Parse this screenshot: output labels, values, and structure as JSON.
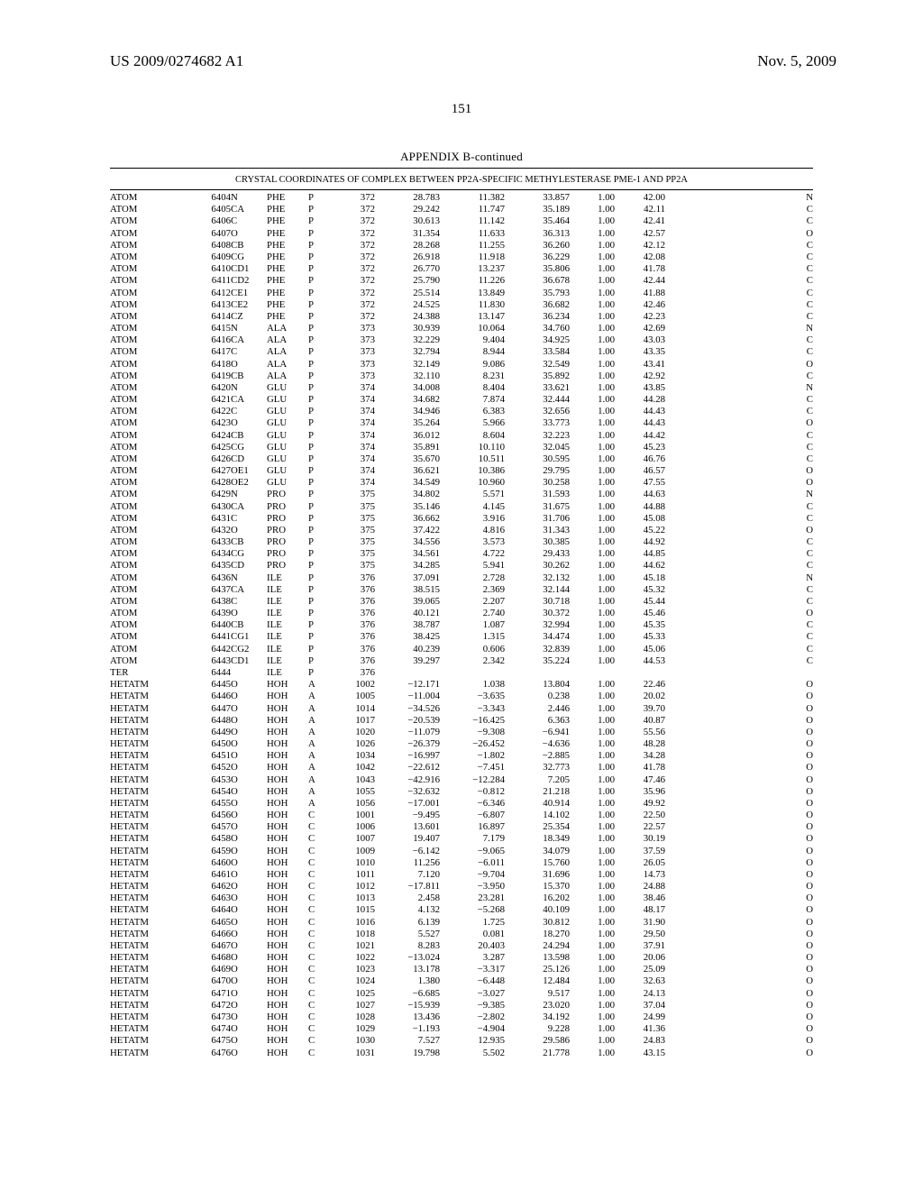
{
  "header": {
    "patent_number": "US 2009/0274682 A1",
    "date": "Nov. 5, 2009"
  },
  "page_number": "151",
  "table": {
    "caption": "APPENDIX B-continued",
    "subtitle": "CRYSTAL COORDINATES OF COMPLEX BETWEEN PP2A-SPECIFIC METHYLESTERASE PME-1 AND PP2A",
    "rows": [
      [
        "ATOM",
        "6404",
        "N",
        "PHE",
        "P",
        "372",
        "28.783",
        "11.382",
        "33.857",
        "1.00",
        "42.00",
        "N"
      ],
      [
        "ATOM",
        "6405",
        "CA",
        "PHE",
        "P",
        "372",
        "29.242",
        "11.747",
        "35.189",
        "1.00",
        "42.11",
        "C"
      ],
      [
        "ATOM",
        "6406",
        "C",
        "PHE",
        "P",
        "372",
        "30.613",
        "11.142",
        "35.464",
        "1.00",
        "42.41",
        "C"
      ],
      [
        "ATOM",
        "6407",
        "O",
        "PHE",
        "P",
        "372",
        "31.354",
        "11.633",
        "36.313",
        "1.00",
        "42.57",
        "O"
      ],
      [
        "ATOM",
        "6408",
        "CB",
        "PHE",
        "P",
        "372",
        "28.268",
        "11.255",
        "36.260",
        "1.00",
        "42.12",
        "C"
      ],
      [
        "ATOM",
        "6409",
        "CG",
        "PHE",
        "P",
        "372",
        "26.918",
        "11.918",
        "36.229",
        "1.00",
        "42.08",
        "C"
      ],
      [
        "ATOM",
        "6410",
        "CD1",
        "PHE",
        "P",
        "372",
        "26.770",
        "13.237",
        "35.806",
        "1.00",
        "41.78",
        "C"
      ],
      [
        "ATOM",
        "6411",
        "CD2",
        "PHE",
        "P",
        "372",
        "25.790",
        "11.226",
        "36.678",
        "1.00",
        "42.44",
        "C"
      ],
      [
        "ATOM",
        "6412",
        "CE1",
        "PHE",
        "P",
        "372",
        "25.514",
        "13.849",
        "35.793",
        "1.00",
        "41.88",
        "C"
      ],
      [
        "ATOM",
        "6413",
        "CE2",
        "PHE",
        "P",
        "372",
        "24.525",
        "11.830",
        "36.682",
        "1.00",
        "42.46",
        "C"
      ],
      [
        "ATOM",
        "6414",
        "CZ",
        "PHE",
        "P",
        "372",
        "24.388",
        "13.147",
        "36.234",
        "1.00",
        "42.23",
        "C"
      ],
      [
        "ATOM",
        "6415",
        "N",
        "ALA",
        "P",
        "373",
        "30.939",
        "10.064",
        "34.760",
        "1.00",
        "42.69",
        "N"
      ],
      [
        "ATOM",
        "6416",
        "CA",
        "ALA",
        "P",
        "373",
        "32.229",
        "9.404",
        "34.925",
        "1.00",
        "43.03",
        "C"
      ],
      [
        "ATOM",
        "6417",
        "C",
        "ALA",
        "P",
        "373",
        "32.794",
        "8.944",
        "33.584",
        "1.00",
        "43.35",
        "C"
      ],
      [
        "ATOM",
        "6418",
        "O",
        "ALA",
        "P",
        "373",
        "32.149",
        "9.086",
        "32.549",
        "1.00",
        "43.41",
        "O"
      ],
      [
        "ATOM",
        "6419",
        "CB",
        "ALA",
        "P",
        "373",
        "32.110",
        "8.231",
        "35.892",
        "1.00",
        "42.92",
        "C"
      ],
      [
        "ATOM",
        "6420",
        "N",
        "GLU",
        "P",
        "374",
        "34.008",
        "8.404",
        "33.621",
        "1.00",
        "43.85",
        "N"
      ],
      [
        "ATOM",
        "6421",
        "CA",
        "GLU",
        "P",
        "374",
        "34.682",
        "7.874",
        "32.444",
        "1.00",
        "44.28",
        "C"
      ],
      [
        "ATOM",
        "6422",
        "C",
        "GLU",
        "P",
        "374",
        "34.946",
        "6.383",
        "32.656",
        "1.00",
        "44.43",
        "C"
      ],
      [
        "ATOM",
        "6423",
        "O",
        "GLU",
        "P",
        "374",
        "35.264",
        "5.966",
        "33.773",
        "1.00",
        "44.43",
        "O"
      ],
      [
        "ATOM",
        "6424",
        "CB",
        "GLU",
        "P",
        "374",
        "36.012",
        "8.604",
        "32.223",
        "1.00",
        "44.42",
        "C"
      ],
      [
        "ATOM",
        "6425",
        "CG",
        "GLU",
        "P",
        "374",
        "35.891",
        "10.110",
        "32.045",
        "1.00",
        "45.23",
        "C"
      ],
      [
        "ATOM",
        "6426",
        "CD",
        "GLU",
        "P",
        "374",
        "35.670",
        "10.511",
        "30.595",
        "1.00",
        "46.76",
        "C"
      ],
      [
        "ATOM",
        "6427",
        "OE1",
        "GLU",
        "P",
        "374",
        "36.621",
        "10.386",
        "29.795",
        "1.00",
        "46.57",
        "O"
      ],
      [
        "ATOM",
        "6428",
        "OE2",
        "GLU",
        "P",
        "374",
        "34.549",
        "10.960",
        "30.258",
        "1.00",
        "47.55",
        "O"
      ],
      [
        "ATOM",
        "6429",
        "N",
        "PRO",
        "P",
        "375",
        "34.802",
        "5.571",
        "31.593",
        "1.00",
        "44.63",
        "N"
      ],
      [
        "ATOM",
        "6430",
        "CA",
        "PRO",
        "P",
        "375",
        "35.146",
        "4.145",
        "31.675",
        "1.00",
        "44.88",
        "C"
      ],
      [
        "ATOM",
        "6431",
        "C",
        "PRO",
        "P",
        "375",
        "36.662",
        "3.916",
        "31.706",
        "1.00",
        "45.08",
        "C"
      ],
      [
        "ATOM",
        "6432",
        "O",
        "PRO",
        "P",
        "375",
        "37.422",
        "4.816",
        "31.343",
        "1.00",
        "45.22",
        "O"
      ],
      [
        "ATOM",
        "6433",
        "CB",
        "PRO",
        "P",
        "375",
        "34.556",
        "3.573",
        "30.385",
        "1.00",
        "44.92",
        "C"
      ],
      [
        "ATOM",
        "6434",
        "CG",
        "PRO",
        "P",
        "375",
        "34.561",
        "4.722",
        "29.433",
        "1.00",
        "44.85",
        "C"
      ],
      [
        "ATOM",
        "6435",
        "CD",
        "PRO",
        "P",
        "375",
        "34.285",
        "5.941",
        "30.262",
        "1.00",
        "44.62",
        "C"
      ],
      [
        "ATOM",
        "6436",
        "N",
        "ILE",
        "P",
        "376",
        "37.091",
        "2.728",
        "32.132",
        "1.00",
        "45.18",
        "N"
      ],
      [
        "ATOM",
        "6437",
        "CA",
        "ILE",
        "P",
        "376",
        "38.515",
        "2.369",
        "32.144",
        "1.00",
        "45.32",
        "C"
      ],
      [
        "ATOM",
        "6438",
        "C",
        "ILE",
        "P",
        "376",
        "39.065",
        "2.207",
        "30.718",
        "1.00",
        "45.44",
        "C"
      ],
      [
        "ATOM",
        "6439",
        "O",
        "ILE",
        "P",
        "376",
        "40.121",
        "2.740",
        "30.372",
        "1.00",
        "45.46",
        "O"
      ],
      [
        "ATOM",
        "6440",
        "CB",
        "ILE",
        "P",
        "376",
        "38.787",
        "1.087",
        "32.994",
        "1.00",
        "45.35",
        "C"
      ],
      [
        "ATOM",
        "6441",
        "CG1",
        "ILE",
        "P",
        "376",
        "38.425",
        "1.315",
        "34.474",
        "1.00",
        "45.33",
        "C"
      ],
      [
        "ATOM",
        "6442",
        "CG2",
        "ILE",
        "P",
        "376",
        "40.239",
        "0.606",
        "32.839",
        "1.00",
        "45.06",
        "C"
      ],
      [
        "ATOM",
        "6443",
        "CD1",
        "ILE",
        "P",
        "376",
        "39.297",
        "2.342",
        "35.224",
        "1.00",
        "44.53",
        "C"
      ],
      [
        "TER",
        "6444",
        "",
        "ILE",
        "P",
        "376",
        "",
        "",
        "",
        "",
        "",
        ""
      ],
      [
        "HETATM",
        "6445",
        "O",
        "HOH",
        "A",
        "1002",
        "−12.171",
        "1.038",
        "13.804",
        "1.00",
        "22.46",
        "O"
      ],
      [
        "HETATM",
        "6446",
        "O",
        "HOH",
        "A",
        "1005",
        "−11.004",
        "−3.635",
        "0.238",
        "1.00",
        "20.02",
        "O"
      ],
      [
        "HETATM",
        "6447",
        "O",
        "HOH",
        "A",
        "1014",
        "−34.526",
        "−3.343",
        "2.446",
        "1.00",
        "39.70",
        "O"
      ],
      [
        "HETATM",
        "6448",
        "O",
        "HOH",
        "A",
        "1017",
        "−20.539",
        "−16.425",
        "6.363",
        "1.00",
        "40.87",
        "O"
      ],
      [
        "HETATM",
        "6449",
        "O",
        "HOH",
        "A",
        "1020",
        "−11.079",
        "−9.308",
        "−6.941",
        "1.00",
        "55.56",
        "O"
      ],
      [
        "HETATM",
        "6450",
        "O",
        "HOH",
        "A",
        "1026",
        "−26.379",
        "−26.452",
        "−4.636",
        "1.00",
        "48.28",
        "O"
      ],
      [
        "HETATM",
        "6451",
        "O",
        "HOH",
        "A",
        "1034",
        "−16.997",
        "−1.802",
        "−2.885",
        "1.00",
        "34.28",
        "O"
      ],
      [
        "HETATM",
        "6452",
        "O",
        "HOH",
        "A",
        "1042",
        "−22.612",
        "−7.451",
        "32.773",
        "1.00",
        "41.78",
        "O"
      ],
      [
        "HETATM",
        "6453",
        "O",
        "HOH",
        "A",
        "1043",
        "−42.916",
        "−12.284",
        "7.205",
        "1.00",
        "47.46",
        "O"
      ],
      [
        "HETATM",
        "6454",
        "O",
        "HOH",
        "A",
        "1055",
        "−32.632",
        "−0.812",
        "21.218",
        "1.00",
        "35.96",
        "O"
      ],
      [
        "HETATM",
        "6455",
        "O",
        "HOH",
        "A",
        "1056",
        "−17.001",
        "−6.346",
        "40.914",
        "1.00",
        "49.92",
        "O"
      ],
      [
        "HETATM",
        "6456",
        "O",
        "HOH",
        "C",
        "1001",
        "−9.495",
        "−6.807",
        "14.102",
        "1.00",
        "22.50",
        "O"
      ],
      [
        "HETATM",
        "6457",
        "O",
        "HOH",
        "C",
        "1006",
        "13.601",
        "16.897",
        "25.354",
        "1.00",
        "22.57",
        "O"
      ],
      [
        "HETATM",
        "6458",
        "O",
        "HOH",
        "C",
        "1007",
        "19.407",
        "7.179",
        "18.349",
        "1.00",
        "30.19",
        "O"
      ],
      [
        "HETATM",
        "6459",
        "O",
        "HOH",
        "C",
        "1009",
        "−6.142",
        "−9.065",
        "34.079",
        "1.00",
        "37.59",
        "O"
      ],
      [
        "HETATM",
        "6460",
        "O",
        "HOH",
        "C",
        "1010",
        "11.256",
        "−6.011",
        "15.760",
        "1.00",
        "26.05",
        "O"
      ],
      [
        "HETATM",
        "6461",
        "O",
        "HOH",
        "C",
        "1011",
        "7.120",
        "−9.704",
        "31.696",
        "1.00",
        "14.73",
        "O"
      ],
      [
        "HETATM",
        "6462",
        "O",
        "HOH",
        "C",
        "1012",
        "−17.811",
        "−3.950",
        "15.370",
        "1.00",
        "24.88",
        "O"
      ],
      [
        "HETATM",
        "6463",
        "O",
        "HOH",
        "C",
        "1013",
        "2.458",
        "23.281",
        "16.202",
        "1.00",
        "38.46",
        "O"
      ],
      [
        "HETATM",
        "6464",
        "O",
        "HOH",
        "C",
        "1015",
        "4.132",
        "−5.268",
        "40.109",
        "1.00",
        "48.17",
        "O"
      ],
      [
        "HETATM",
        "6465",
        "O",
        "HOH",
        "C",
        "1016",
        "6.139",
        "1.725",
        "30.812",
        "1.00",
        "31.90",
        "O"
      ],
      [
        "HETATM",
        "6466",
        "O",
        "HOH",
        "C",
        "1018",
        "5.527",
        "0.081",
        "18.270",
        "1.00",
        "29.50",
        "O"
      ],
      [
        "HETATM",
        "6467",
        "O",
        "HOH",
        "C",
        "1021",
        "8.283",
        "20.403",
        "24.294",
        "1.00",
        "37.91",
        "O"
      ],
      [
        "HETATM",
        "6468",
        "O",
        "HOH",
        "C",
        "1022",
        "−13.024",
        "3.287",
        "13.598",
        "1.00",
        "20.06",
        "O"
      ],
      [
        "HETATM",
        "6469",
        "O",
        "HOH",
        "C",
        "1023",
        "13.178",
        "−3.317",
        "25.126",
        "1.00",
        "25.09",
        "O"
      ],
      [
        "HETATM",
        "6470",
        "O",
        "HOH",
        "C",
        "1024",
        "1.380",
        "−6.448",
        "12.484",
        "1.00",
        "32.63",
        "O"
      ],
      [
        "HETATM",
        "6471",
        "O",
        "HOH",
        "C",
        "1025",
        "−6.685",
        "−3.027",
        "9.517",
        "1.00",
        "24.13",
        "O"
      ],
      [
        "HETATM",
        "6472",
        "O",
        "HOH",
        "C",
        "1027",
        "−15.939",
        "−9.385",
        "23.020",
        "1.00",
        "37.04",
        "O"
      ],
      [
        "HETATM",
        "6473",
        "O",
        "HOH",
        "C",
        "1028",
        "13.436",
        "−2.802",
        "34.192",
        "1.00",
        "24.99",
        "O"
      ],
      [
        "HETATM",
        "6474",
        "O",
        "HOH",
        "C",
        "1029",
        "−1.193",
        "−4.904",
        "9.228",
        "1.00",
        "41.36",
        "O"
      ],
      [
        "HETATM",
        "6475",
        "O",
        "HOH",
        "C",
        "1030",
        "7.527",
        "12.935",
        "29.586",
        "1.00",
        "24.83",
        "O"
      ],
      [
        "HETATM",
        "6476",
        "O",
        "HOH",
        "C",
        "1031",
        "19.798",
        "5.502",
        "21.778",
        "1.00",
        "43.15",
        "O"
      ]
    ]
  }
}
